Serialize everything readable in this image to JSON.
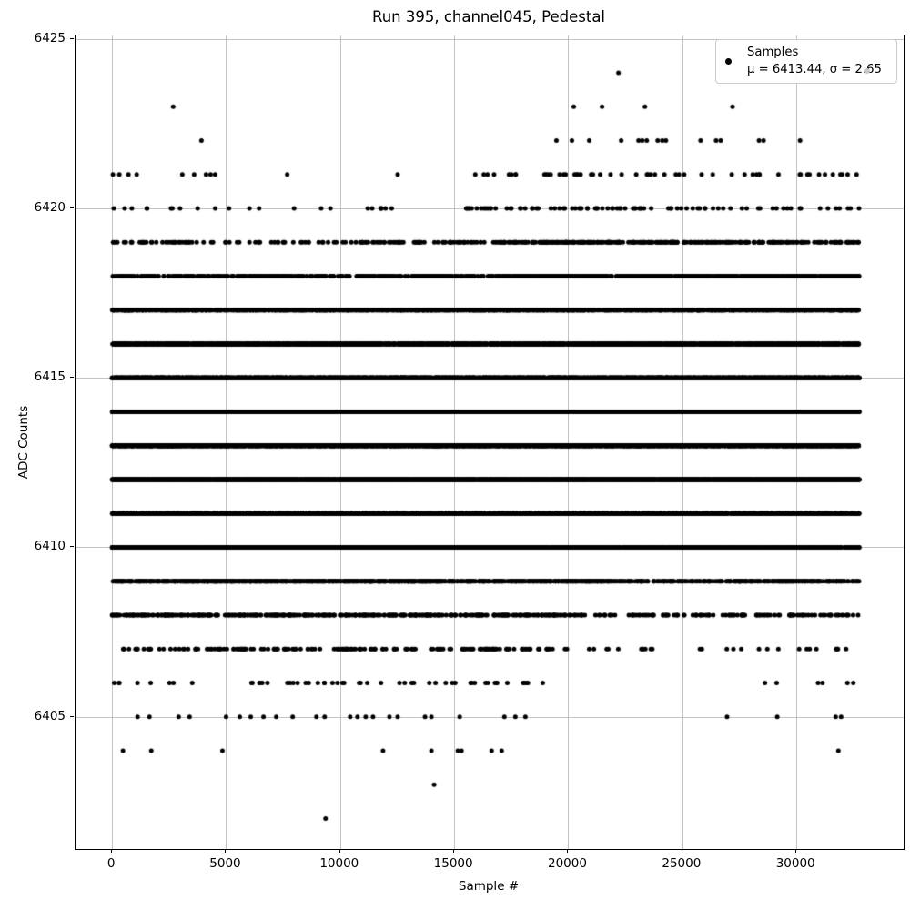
{
  "chart_data": {
    "type": "scatter",
    "title": "Run 395, channel045, Pedestal",
    "xlabel": "Sample #",
    "ylabel": "ADC Counts",
    "xlim": [
      -1600,
      34700
    ],
    "ylim": [
      6401.1,
      6425.1
    ],
    "x_ticks": [
      0,
      5000,
      10000,
      15000,
      20000,
      25000,
      30000
    ],
    "y_ticks": [
      6405,
      6410,
      6415,
      6420,
      6425
    ],
    "grid": true,
    "legend_position": "upper right",
    "marker_color": "#000000",
    "grid_color": "#b0b0b0",
    "legend": {
      "samples_label": "Samples",
      "stats_label": "μ = 6413.44, σ = 2.65",
      "mu": 6413.44,
      "sigma": 2.65
    },
    "bands": [
      {
        "adc": 6424,
        "x": [
          22200
        ]
      },
      {
        "adc": 6423,
        "x": [
          2680,
          20240,
          21480,
          23360,
          27200
        ]
      },
      {
        "adc": 6422,
        "x": [
          3920,
          19480,
          20160,
          20920,
          22320,
          23080,
          23240,
          23440,
          23920,
          24120,
          24280,
          25800,
          26480,
          26680,
          28360,
          28560,
          30160
        ]
      },
      {
        "adc": 6421,
        "x": [
          40,
          320,
          720,
          1080,
          3080,
          3600,
          4120,
          4320,
          4520,
          7680,
          12520
        ],
        "count": 52,
        "segments": [
          [
            15500,
            24000,
            0.55
          ],
          [
            24000,
            30500,
            0.3
          ],
          [
            30500,
            32760,
            0.15
          ]
        ]
      },
      {
        "adc": 6420,
        "count": 110,
        "segments": [
          [
            0,
            6500,
            0.12
          ],
          [
            6500,
            15500,
            0.09
          ],
          [
            15500,
            22800,
            0.42
          ],
          [
            22800,
            30000,
            0.29
          ],
          [
            30000,
            32760,
            0.08
          ]
        ]
      },
      {
        "adc": 6419,
        "count": 450,
        "segments": [
          [
            0,
            11000,
            0.17
          ],
          [
            11000,
            17000,
            0.13
          ],
          [
            17000,
            32760,
            0.7
          ]
        ]
      },
      {
        "adc": 6418,
        "count": 1000,
        "segments": [
          [
            0,
            17500,
            0.38
          ],
          [
            17500,
            32760,
            0.62
          ]
        ]
      },
      {
        "adc": 6417,
        "count": 1900,
        "segments": [
          [
            0,
            32760,
            1.0
          ]
        ]
      },
      {
        "adc": 6416,
        "count": 3000,
        "segments": [
          [
            0,
            32760,
            1.0
          ]
        ]
      },
      {
        "adc": 6415,
        "count": 4100,
        "segments": [
          [
            0,
            32760,
            1.0
          ]
        ]
      },
      {
        "adc": 6414,
        "count": 4800,
        "segments": [
          [
            0,
            32760,
            1.0
          ]
        ]
      },
      {
        "adc": 6413,
        "count": 4900,
        "segments": [
          [
            0,
            32760,
            1.0
          ]
        ]
      },
      {
        "adc": 6412,
        "count": 4200,
        "segments": [
          [
            0,
            32760,
            1.0
          ]
        ]
      },
      {
        "adc": 6411,
        "count": 3100,
        "segments": [
          [
            0,
            32760,
            1.0
          ]
        ]
      },
      {
        "adc": 6410,
        "count": 2000,
        "segments": [
          [
            0,
            21000,
            0.74
          ],
          [
            21000,
            32760,
            0.26
          ]
        ]
      },
      {
        "adc": 6409,
        "count": 1100,
        "segments": [
          [
            0,
            21500,
            0.75
          ],
          [
            21500,
            32760,
            0.25
          ]
        ]
      },
      {
        "adc": 6408,
        "count": 520,
        "segments": [
          [
            0,
            19500,
            0.74
          ],
          [
            19500,
            24500,
            0.1
          ],
          [
            24500,
            32760,
            0.16
          ]
        ]
      },
      {
        "adc": 6407,
        "count": 215,
        "segments": [
          [
            0,
            19500,
            0.86
          ],
          [
            19500,
            24500,
            0.06
          ],
          [
            24500,
            32760,
            0.08
          ]
        ]
      },
      {
        "adc": 6406,
        "count": 60,
        "segments": [
          [
            0,
            19500,
            0.9
          ],
          [
            28500,
            32500,
            0.1
          ]
        ]
      },
      {
        "adc": 6405,
        "x": [
          1120,
          1640,
          2920,
          3400,
          5000,
          5600,
          6080,
          6640,
          7200,
          7920,
          8960,
          9320,
          10440,
          10760,
          11120,
          11440,
          12160,
          12520,
          13720,
          14000,
          15240,
          17200,
          17680,
          18120,
          26960,
          29160,
          31720,
          31960
        ]
      },
      {
        "adc": 6404,
        "x": [
          480,
          1720,
          4840,
          11880,
          14000,
          15160,
          15320,
          16640,
          17080,
          31840
        ]
      },
      {
        "adc": 6403,
        "x": [
          14120
        ]
      },
      {
        "adc": 6402,
        "x": [
          9360
        ]
      }
    ]
  }
}
